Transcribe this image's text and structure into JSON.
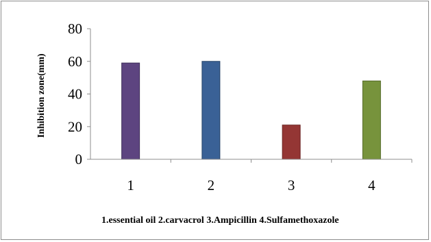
{
  "chart_data": {
    "type": "bar",
    "categories": [
      "1",
      "2",
      "3",
      "4"
    ],
    "values": [
      59,
      60,
      21,
      48
    ],
    "colors": [
      "#5d4480",
      "#3a6196",
      "#943634",
      "#77933c"
    ],
    "stroke_colors": [
      "#40305a",
      "#274469",
      "#6b2523",
      "#556b2a"
    ],
    "ylabel": "Inhibition zone(mm)",
    "xlabel": "",
    "ylim": [
      0,
      80
    ],
    "yticks": [
      0,
      20,
      40,
      60,
      80
    ],
    "grid": false,
    "legend": "none",
    "annotation": "1.essential oil  2.carvacrol  3.Ampicillin  4.Sulfamethoxazole"
  }
}
